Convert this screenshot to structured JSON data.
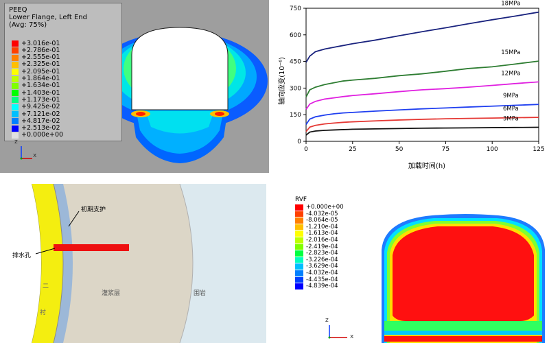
{
  "peeq_panel": {
    "title_lines": [
      "PEEQ",
      "Lower Flange, Left End",
      "(Avg: 75%)"
    ],
    "legend": [
      {
        "value": "+3.016e-01",
        "color": "#ff0000"
      },
      {
        "value": "+2.786e-01",
        "color": "#ff4000"
      },
      {
        "value": "+2.555e-01",
        "color": "#ff8000"
      },
      {
        "value": "+2.325e-01",
        "color": "#ffbf00"
      },
      {
        "value": "+2.095e-01",
        "color": "#ffff00"
      },
      {
        "value": "+1.864e-01",
        "color": "#bfff00"
      },
      {
        "value": "+1.634e-01",
        "color": "#7fff00"
      },
      {
        "value": "+1.403e-01",
        "color": "#00ff00"
      },
      {
        "value": "+1.173e-01",
        "color": "#00ff80"
      },
      {
        "value": "+9.425e-02",
        "color": "#00ffff"
      },
      {
        "value": "+7.121e-02",
        "color": "#00bfff"
      },
      {
        "value": "+4.817e-02",
        "color": "#0080ff"
      },
      {
        "value": "+2.513e-02",
        "color": "#0000ff"
      },
      {
        "value": "+0.000e+00",
        "color": "#e0e0e0"
      }
    ],
    "axis_labels": {
      "z": "z",
      "x": "x"
    }
  },
  "chart_data": {
    "type": "line",
    "xlabel": "加载时间(h)",
    "ylabel": "轴向应变(10⁻⁶)",
    "xlim": [
      0,
      125
    ],
    "ylim": [
      0,
      750
    ],
    "xticks": [
      0,
      25,
      50,
      75,
      100,
      125
    ],
    "yticks": [
      0,
      150,
      300,
      450,
      600,
      750
    ],
    "x": [
      0,
      2,
      5,
      10,
      15,
      20,
      25,
      37,
      50,
      62,
      75,
      87,
      100,
      112,
      125
    ],
    "series": [
      {
        "name": "18MPa",
        "color": "#1a237e",
        "values": [
          445,
          480,
          505,
          520,
          530,
          540,
          550,
          570,
          595,
          617,
          640,
          662,
          685,
          705,
          728
        ]
      },
      {
        "name": "15MPa",
        "color": "#2e7d32",
        "values": [
          250,
          290,
          305,
          320,
          330,
          340,
          345,
          355,
          370,
          380,
          395,
          410,
          420,
          435,
          452
        ]
      },
      {
        "name": "12MPa",
        "color": "#e020e0",
        "values": [
          180,
          210,
          225,
          238,
          245,
          252,
          258,
          268,
          280,
          290,
          297,
          305,
          315,
          325,
          335
        ]
      },
      {
        "name": "9MPa",
        "color": "#1f3ff0",
        "values": [
          95,
          125,
          138,
          148,
          155,
          160,
          163,
          170,
          177,
          183,
          188,
          193,
          198,
          203,
          208
        ]
      },
      {
        "name": "6MPa",
        "color": "#e53935",
        "values": [
          55,
          80,
          90,
          98,
          103,
          107,
          110,
          115,
          120,
          124,
          127,
          129,
          131,
          133,
          135
        ]
      },
      {
        "name": "3MPa",
        "color": "#111111",
        "values": [
          35,
          52,
          58,
          62,
          64,
          66,
          68,
          70,
          72,
          74,
          75,
          76,
          77,
          78,
          79
        ]
      }
    ]
  },
  "lining_panel": {
    "labels": {
      "support": "初期支护",
      "drain": "排水孔",
      "grout": "灌浆层",
      "rock": "围岩",
      "lining_top": "二",
      "lining_bottom": "衬"
    }
  },
  "rvf_panel": {
    "title": "RVF",
    "legend": [
      {
        "value": "+0.000e+00",
        "color": "#ff0000"
      },
      {
        "value": "-4.032e-05",
        "color": "#ff4000"
      },
      {
        "value": "-8.064e-05",
        "color": "#ff8000"
      },
      {
        "value": "-1.210e-04",
        "color": "#ffbf00"
      },
      {
        "value": "-1.613e-04",
        "color": "#ffff00"
      },
      {
        "value": "-2.016e-04",
        "color": "#bfff00"
      },
      {
        "value": "-2.419e-04",
        "color": "#7fff00"
      },
      {
        "value": "-2.823e-04",
        "color": "#00ff40"
      },
      {
        "value": "-3.226e-04",
        "color": "#00ffbf"
      },
      {
        "value": "-3.629e-04",
        "color": "#00bfff"
      },
      {
        "value": "-4.032e-04",
        "color": "#0080ff"
      },
      {
        "value": "-4.435e-04",
        "color": "#0040ff"
      },
      {
        "value": "-4.839e-04",
        "color": "#0000ff"
      }
    ],
    "axis_labels": {
      "z": "z",
      "x": "x"
    }
  }
}
